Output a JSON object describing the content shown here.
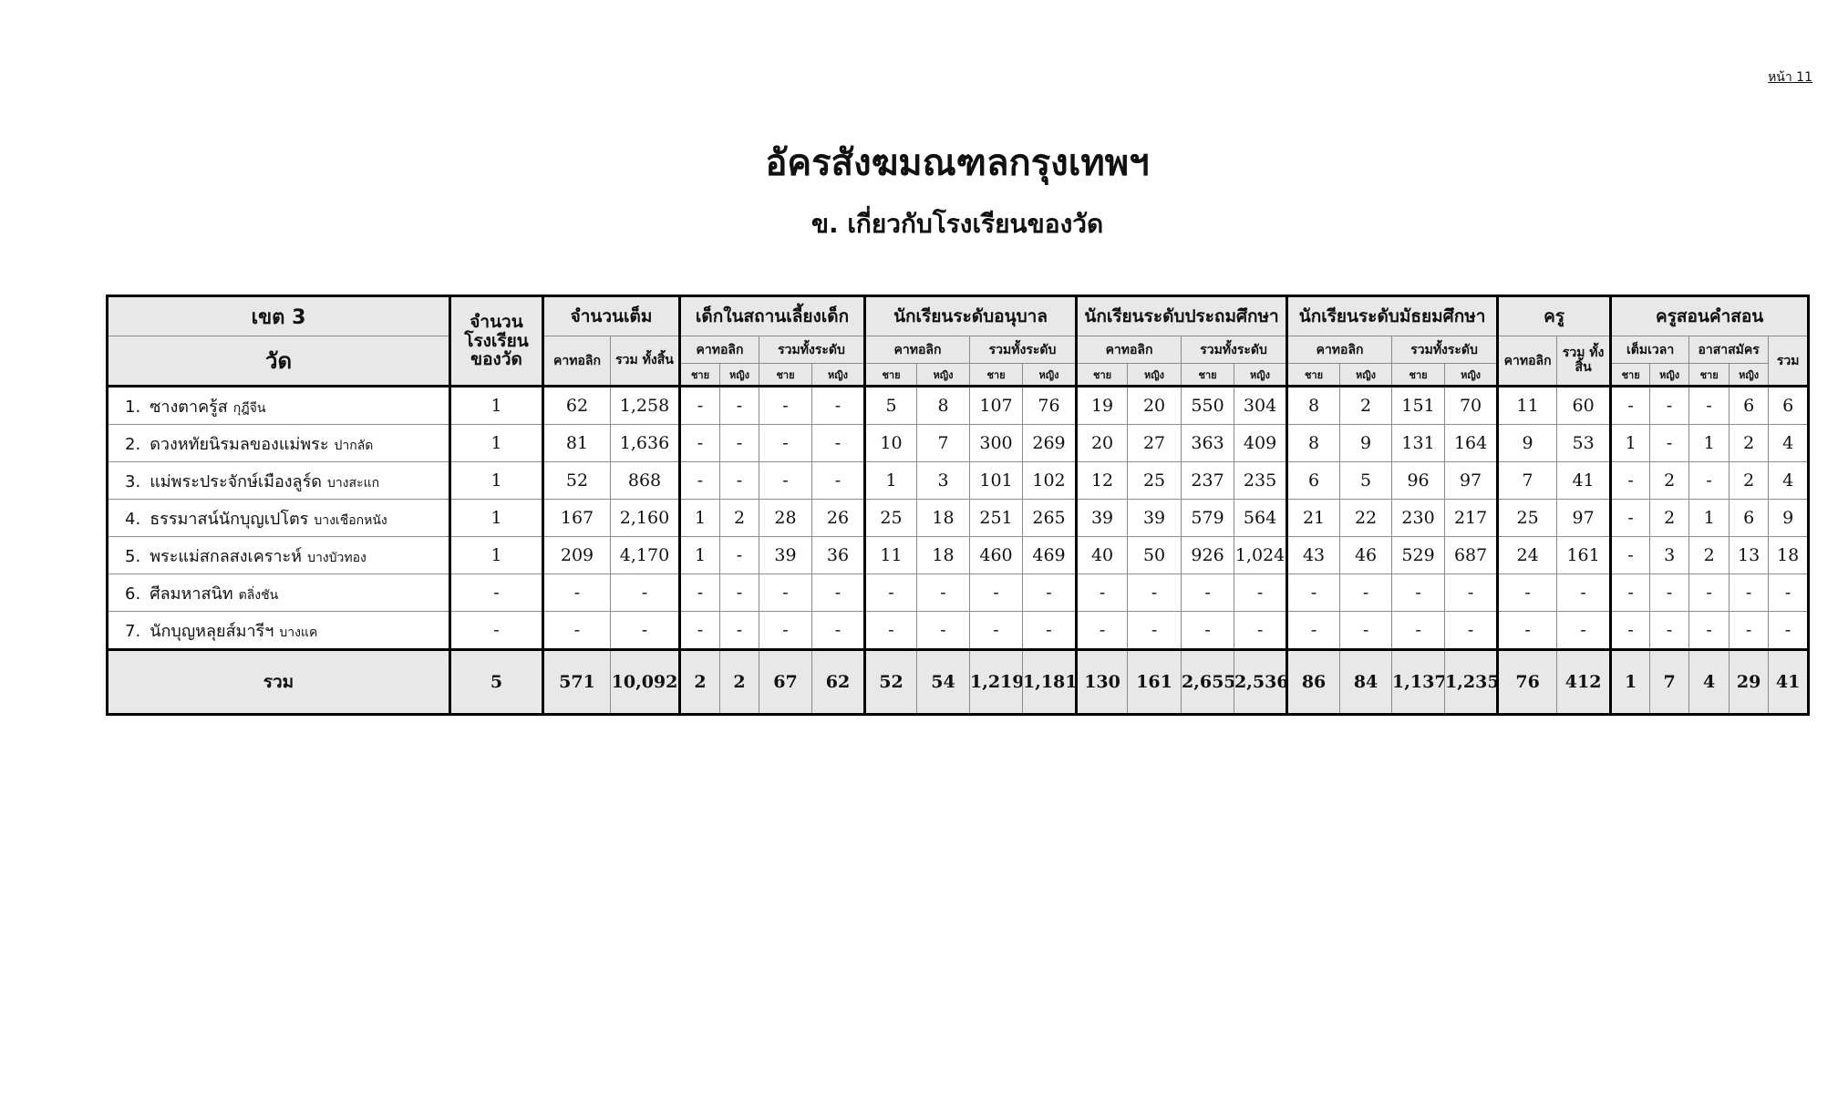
{
  "page_label": "หน้า 11",
  "title": "อัครสังฆมณฑลกรุงเทพฯ",
  "subtitle": "ข.   เกี่ยวกับโรงเรียนของวัด",
  "header": {
    "zone": "เขต 3",
    "parish": "วัด",
    "school_count": "จำนวน โรงเรียน ของวัด",
    "full_count": "จำนวนเต็ม",
    "nursery": "เด็กในสถานเลี้ยงเด็ก",
    "kindergarten": "นักเรียนระดับอนุบาล",
    "primary": "นักเรียนระดับประถมศึกษา",
    "secondary": "นักเรียนระดับมัธยมศึกษา",
    "teachers": "ครู",
    "catechists": "ครูสอนคำสอน",
    "catholic": "คาทอลิก",
    "grand_total": "รวม ทั้งสิ้น",
    "all_levels": "รวมทั้งระดับ",
    "full_time": "เต็มเวลา",
    "volunteer": "อาสาสมัคร",
    "total": "รวม",
    "male": "ชาย",
    "female": "หญิง"
  },
  "rows": [
    {
      "no": "1.",
      "name": "ซางตาครู้ส",
      "area": "กุฎีจีน",
      "school_count": "1",
      "values": [
        "62",
        "1,258",
        "-",
        "-",
        "-",
        "-",
        "5",
        "8",
        "107",
        "76",
        "19",
        "20",
        "550",
        "304",
        "8",
        "2",
        "151",
        "70",
        "11",
        "60",
        "-",
        "-",
        "-",
        "6",
        "6"
      ]
    },
    {
      "no": "2.",
      "name": "ดวงหทัยนิรมลของแม่พระ",
      "area": "ปากลัด",
      "school_count": "1",
      "values": [
        "81",
        "1,636",
        "-",
        "-",
        "-",
        "-",
        "10",
        "7",
        "300",
        "269",
        "20",
        "27",
        "363",
        "409",
        "8",
        "9",
        "131",
        "164",
        "9",
        "53",
        "1",
        "-",
        "1",
        "2",
        "4"
      ]
    },
    {
      "no": "3.",
      "name": "แม่พระประจักษ์เมืองลูร์ด",
      "area": "บางสะแก",
      "school_count": "1",
      "values": [
        "52",
        "868",
        "-",
        "-",
        "-",
        "-",
        "1",
        "3",
        "101",
        "102",
        "12",
        "25",
        "237",
        "235",
        "6",
        "5",
        "96",
        "97",
        "7",
        "41",
        "-",
        "2",
        "-",
        "2",
        "4"
      ]
    },
    {
      "no": "4.",
      "name": "ธรรมาสน์นักบุญเปโตร",
      "area": "บางเชือกหนัง",
      "school_count": "1",
      "values": [
        "167",
        "2,160",
        "1",
        "2",
        "28",
        "26",
        "25",
        "18",
        "251",
        "265",
        "39",
        "39",
        "579",
        "564",
        "21",
        "22",
        "230",
        "217",
        "25",
        "97",
        "-",
        "2",
        "1",
        "6",
        "9"
      ]
    },
    {
      "no": "5.",
      "name": "พระแม่สกลสงเคราะห์",
      "area": "บางบัวทอง",
      "school_count": "1",
      "values": [
        "209",
        "4,170",
        "1",
        "-",
        "39",
        "36",
        "11",
        "18",
        "460",
        "469",
        "40",
        "50",
        "926",
        "1,024",
        "43",
        "46",
        "529",
        "687",
        "24",
        "161",
        "-",
        "3",
        "2",
        "13",
        "18"
      ]
    },
    {
      "no": "6.",
      "name": "ศีลมหาสนิท",
      "area": "ตลิ่งชัน",
      "school_count": "-",
      "values": [
        "-",
        "-",
        "-",
        "-",
        "-",
        "-",
        "-",
        "-",
        "-",
        "-",
        "-",
        "-",
        "-",
        "-",
        "-",
        "-",
        "-",
        "-",
        "-",
        "-",
        "-",
        "-",
        "-",
        "-",
        "-"
      ]
    },
    {
      "no": "7.",
      "name": "นักบุญหลุยส์มารีฯ",
      "area": "บางแค",
      "school_count": "-",
      "values": [
        "-",
        "-",
        "-",
        "-",
        "-",
        "-",
        "-",
        "-",
        "-",
        "-",
        "-",
        "-",
        "-",
        "-",
        "-",
        "-",
        "-",
        "-",
        "-",
        "-",
        "-",
        "-",
        "-",
        "-",
        "-"
      ]
    }
  ],
  "total": {
    "label": "รวม",
    "school_count": "5",
    "values": [
      "571",
      "10,092",
      "2",
      "2",
      "67",
      "62",
      "52",
      "54",
      "1,219",
      "1,181",
      "130",
      "161",
      "2,655",
      "2,536",
      "86",
      "84",
      "1,137",
      "1,235",
      "76",
      "412",
      "1",
      "7",
      "4",
      "29",
      "41"
    ]
  }
}
